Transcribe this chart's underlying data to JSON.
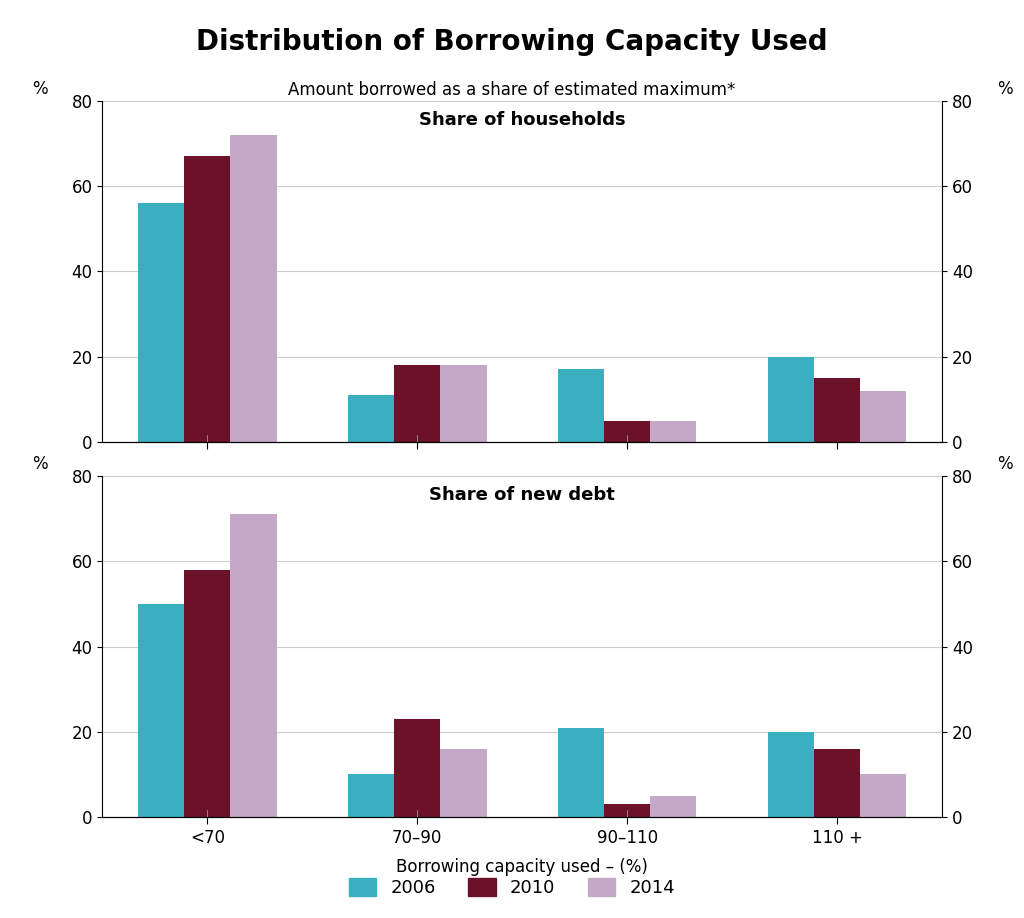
{
  "title": "Distribution of Borrowing Capacity Used",
  "subtitle": "Amount borrowed as a share of estimated maximum*",
  "categories": [
    "<70",
    "70–90",
    "90–110",
    "110 +"
  ],
  "xlabel": "Borrowing capacity used – (%)",
  "top_panel_label": "Share of households",
  "bottom_panel_label": "Share of new debt",
  "top_data": {
    "2006": [
      56,
      11,
      17,
      20
    ],
    "2010": [
      67,
      18,
      5,
      15
    ],
    "2014": [
      72,
      18,
      5,
      12
    ]
  },
  "bottom_data": {
    "2006": [
      50,
      10,
      21,
      20
    ],
    "2010": [
      58,
      23,
      3,
      16
    ],
    "2014": [
      71,
      16,
      5,
      10
    ]
  },
  "colors": {
    "2006": "#3aafc0",
    "2010": "#6b1228",
    "2014": "#c5a8c8"
  },
  "ylim": [
    0,
    80
  ],
  "yticks": [
    0,
    20,
    40,
    60,
    80
  ],
  "legend_labels": [
    "2006",
    "2010",
    "2014"
  ],
  "background_color": "#ffffff",
  "grid_color": "#cccccc"
}
